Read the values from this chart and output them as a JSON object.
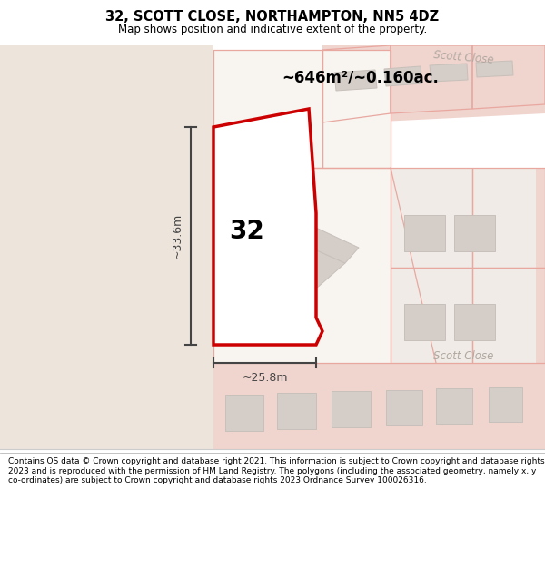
{
  "title": "32, SCOTT CLOSE, NORTHAMPTON, NN5 4DZ",
  "subtitle": "Map shows position and indicative extent of the property.",
  "area_text": "~646m²/~0.160ac.",
  "width_label": "~25.8m",
  "height_label": "~33.6m",
  "house_number": "32",
  "scott_close_label_top": "Scott Close",
  "scott_close_label_bottom": "Scott Close",
  "footer": "Contains OS data © Crown copyright and database right 2021. This information is subject to Crown copyright and database rights 2023 and is reproduced with the permission of HM Land Registry. The polygons (including the associated geometry, namely x, y co-ordinates) are subject to Crown copyright and database rights 2023 Ordnance Survey 100026316.",
  "bg_left": "#ede4dc",
  "bg_right": "#f5eeea",
  "road_pink": "#f0d4ce",
  "parcel_line": "#e8a8a0",
  "building_fill": "#d4cdc8",
  "building_edge": "#c8c0ba",
  "highlight_fill": "#ffffff",
  "highlight_border": "#cc0000",
  "dim_color": "#444444",
  "label_color": "#b0a8a0",
  "title_color": "#000000",
  "footer_color": "#000000"
}
